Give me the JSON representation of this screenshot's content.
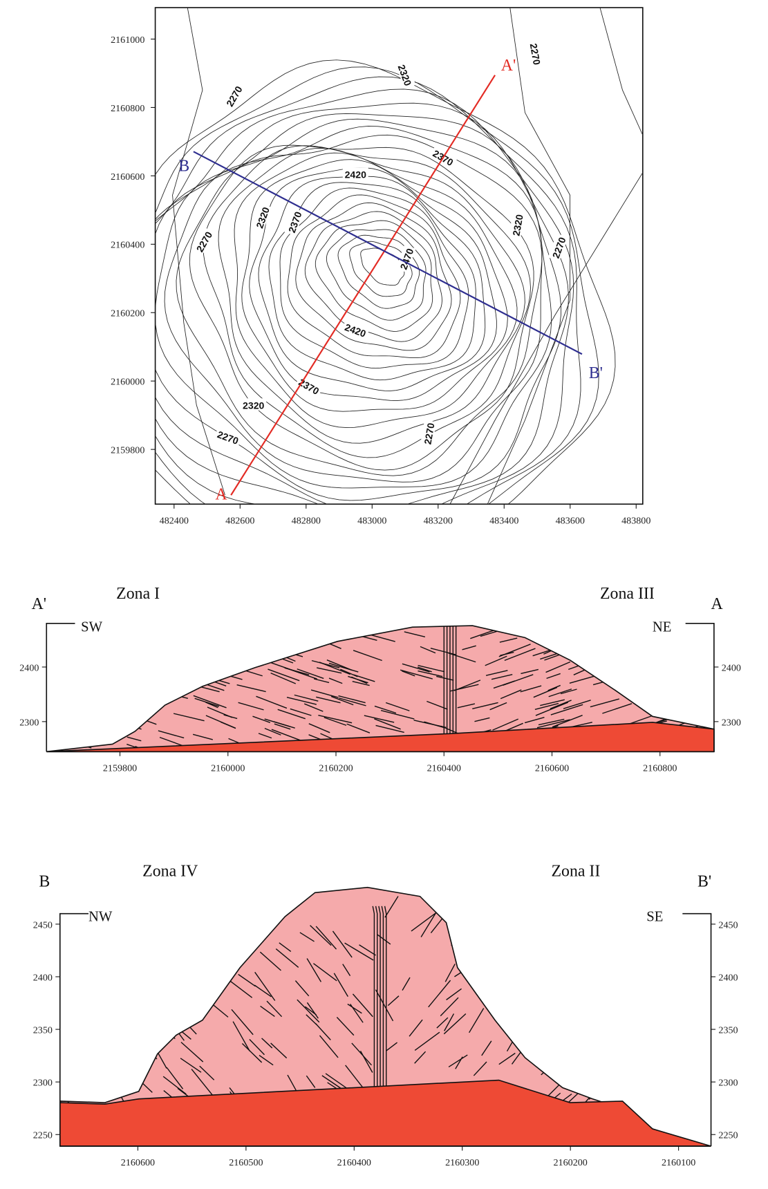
{
  "map": {
    "xlim": [
      482343,
      483820
    ],
    "ylim": [
      2159640,
      2161092
    ],
    "xticks": [
      482400,
      482600,
      482800,
      483000,
      483200,
      483400,
      483600,
      483800
    ],
    "yticks": [
      2159800,
      2160000,
      2160200,
      2160400,
      2160600,
      2160800,
      2161000
    ],
    "contour_labels": [
      2270,
      2320,
      2370,
      2420,
      2320,
      2370,
      2270,
      2470,
      2320,
      2270,
      2420,
      2370,
      2320,
      2270,
      2270,
      2270
    ],
    "section_lines": [
      {
        "start": "A",
        "end": "A'",
        "color": "#e32b24"
      },
      {
        "start": "B",
        "end": "B'",
        "color": "#2e2e8f"
      }
    ]
  },
  "sections": [
    {
      "left_label": "A'",
      "right_label": "A",
      "left_zone": "Zona I",
      "right_zone": "Zona III",
      "left_direction": "SW",
      "right_direction": "NE",
      "xlim": [
        2159664,
        2160900
      ],
      "ylim": [
        2245,
        2480
      ],
      "xticks": [
        2159800,
        2160000,
        2160200,
        2160400,
        2160600,
        2160800
      ],
      "yticks": [
        2300,
        2400
      ],
      "body_color": "#f5aaab",
      "base_color": "#ee4a35"
    },
    {
      "left_label": "B",
      "right_label": "B'",
      "left_zone": "Zona IV",
      "right_zone": "Zona II",
      "left_direction": "NW",
      "right_direction": "SE",
      "xlim": [
        2160672,
        2160070
      ],
      "ylim": [
        2239,
        2460
      ],
      "xticks": [
        2160600,
        2160500,
        2160400,
        2160300,
        2160200,
        2160100
      ],
      "yticks": [
        2250,
        2300,
        2350,
        2400,
        2450
      ],
      "body_color": "#f5aaab",
      "base_color": "#ee4a35"
    }
  ]
}
